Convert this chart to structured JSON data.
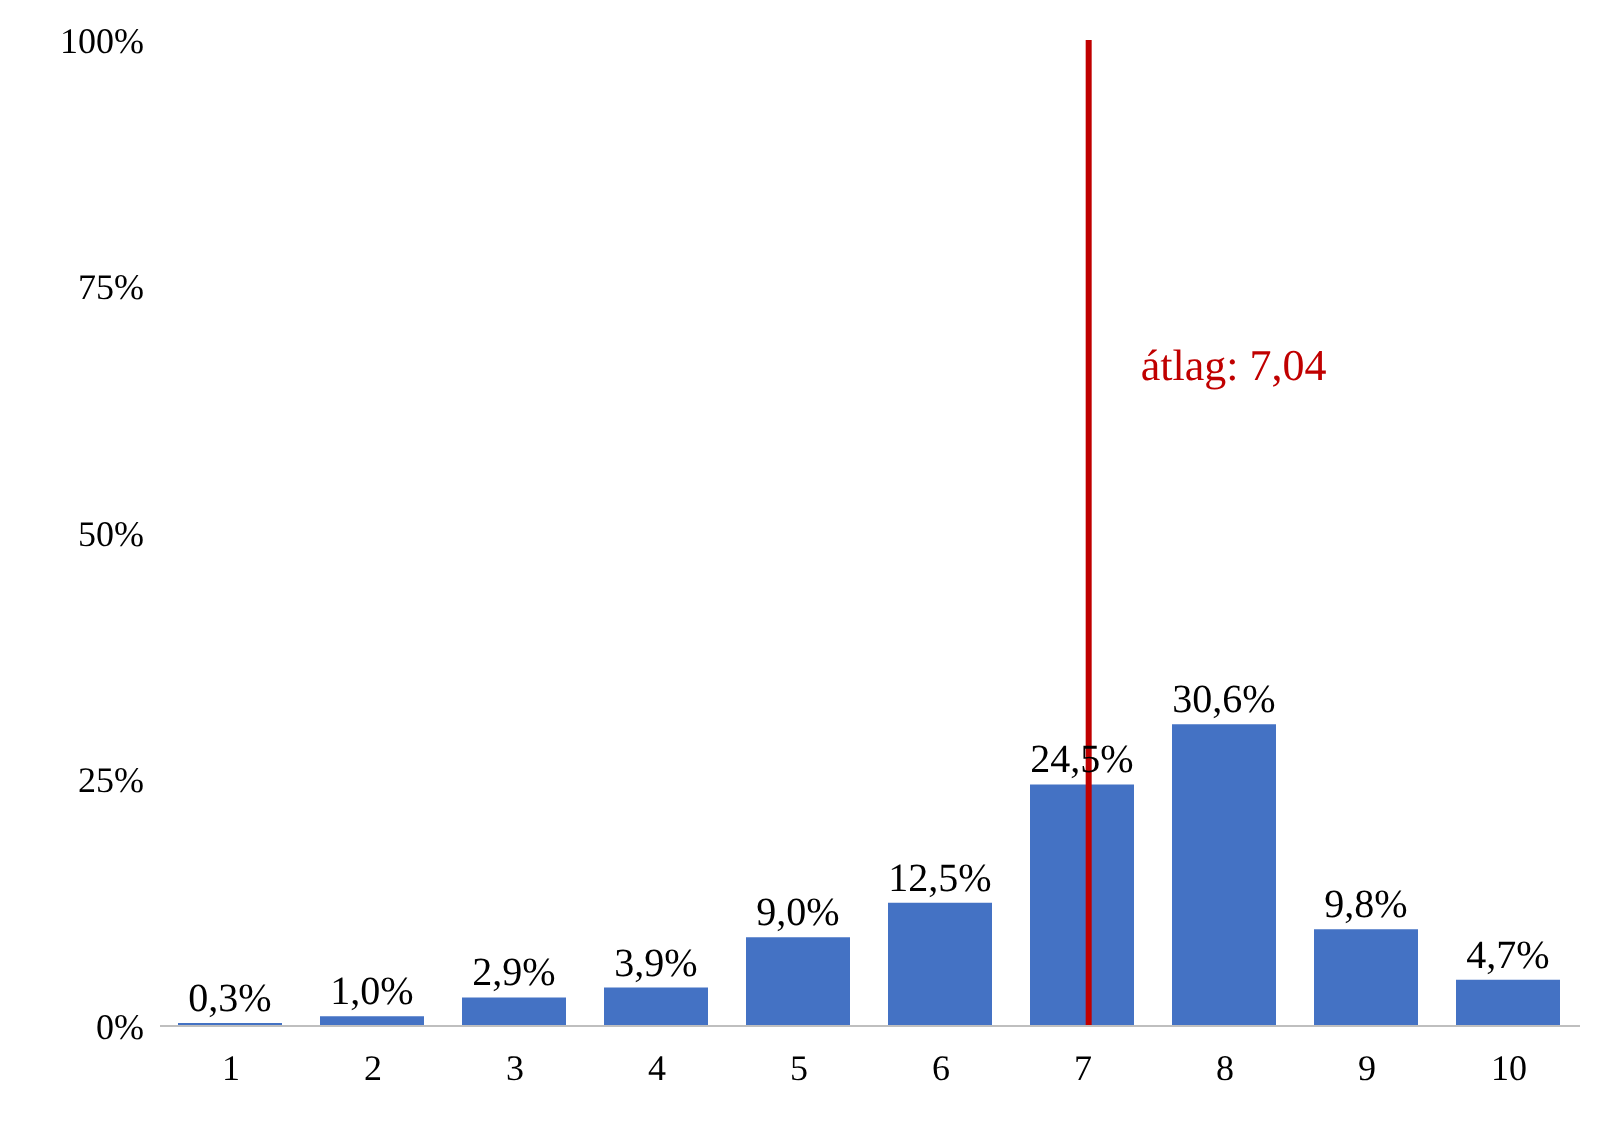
{
  "chart_data": {
    "type": "bar",
    "x": [
      1,
      2,
      3,
      4,
      5,
      6,
      7,
      8,
      9,
      10
    ],
    "xlim": [
      0.5,
      10.5
    ],
    "xticks": [
      1,
      2,
      3,
      4,
      5,
      6,
      7,
      8,
      9,
      10
    ],
    "values": [
      0.3,
      1.0,
      2.9,
      3.9,
      9.0,
      12.5,
      24.5,
      30.6,
      9.8,
      4.7
    ],
    "value_labels": [
      "0,3%",
      "1,0%",
      "2,9%",
      "3,9%",
      "9,0%",
      "12,5%",
      "24,5%",
      "30,6%",
      "9,8%",
      "4,7%"
    ],
    "color": "#4472c4",
    "ylim": [
      0,
      100
    ],
    "yticks": [
      {
        "value": 0,
        "label": "0%"
      },
      {
        "value": 25,
        "label": "25%"
      },
      {
        "value": 50,
        "label": "50%"
      },
      {
        "value": 75,
        "label": "75%"
      },
      {
        "value": 100,
        "label": "100%"
      }
    ],
    "grid": false,
    "legend": false,
    "ref_lines": [
      {
        "axis": "x",
        "value": 7.04,
        "label": "átlag: 7,04",
        "color": "#c00000"
      }
    ]
  }
}
